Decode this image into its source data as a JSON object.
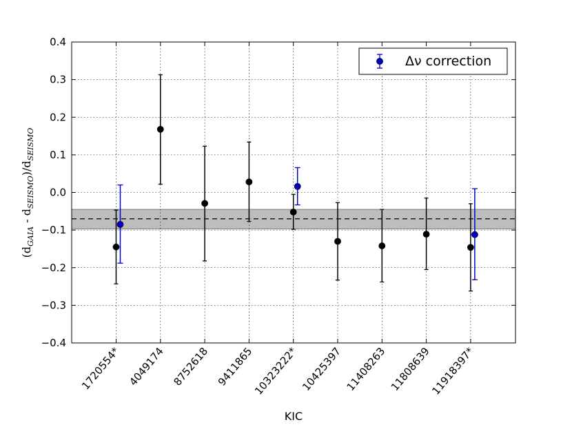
{
  "chart_data": {
    "type": "scatter",
    "xlabel": "KIC",
    "ylabel": {
      "open": "(d",
      "sub1": "GAIA",
      "mid": " - d",
      "sub2": "SEISMO",
      "close": ")/d",
      "sub3": "SEISMO"
    },
    "ylim": [
      -0.4,
      0.4
    ],
    "yticks": [
      -0.4,
      -0.3,
      -0.2,
      -0.1,
      0.0,
      0.1,
      0.2,
      0.3,
      0.4
    ],
    "ytick_labels": [
      "−0.4",
      "−0.3",
      "−0.2",
      "−0.1",
      "0.0",
      "0.1",
      "0.2",
      "0.3",
      "0.4"
    ],
    "categories": [
      "1720554*",
      "4049174",
      "8752618",
      "9411865",
      "10323222*",
      "10425397",
      "11408263",
      "11808639",
      "11918397*"
    ],
    "grid": true,
    "legend": {
      "position": "top-right",
      "label": "Δν correction"
    },
    "colors": {
      "series": "#000000",
      "correction": "#0000cc",
      "band": "#bdbdbd"
    },
    "mean_line": -0.07,
    "band": [
      -0.097,
      -0.045
    ],
    "series": [
      {
        "values": [
          -0.145,
          0.168,
          -0.029,
          0.028,
          -0.052,
          -0.13,
          -0.142,
          -0.111,
          -0.146
        ],
        "err_low": [
          -0.243,
          0.022,
          -0.182,
          -0.077,
          -0.098,
          -0.233,
          -0.238,
          -0.205,
          -0.262
        ],
        "err_high": [
          -0.047,
          0.313,
          0.123,
          0.134,
          -0.005,
          -0.027,
          -0.045,
          -0.015,
          -0.03
        ]
      },
      {
        "name": "Δν correction",
        "category_index": [
          0,
          4,
          8
        ],
        "values": [
          -0.085,
          0.016,
          -0.112
        ],
        "err_low": [
          -0.188,
          -0.033,
          -0.232
        ],
        "err_high": [
          0.02,
          0.066,
          0.01
        ]
      }
    ]
  }
}
